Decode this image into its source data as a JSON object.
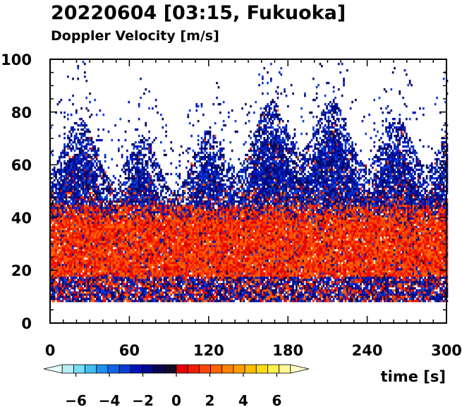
{
  "chart_data": {
    "type": "heatmap",
    "title": "20220604 [03:15, Fukuoka]",
    "subtitle": "Doppler Velocity [m/s]",
    "xlabel": "time [s]",
    "ylabel": "",
    "xlim": [
      0,
      300
    ],
    "ylim": [
      0,
      100
    ],
    "x_ticks": [
      "0",
      "60",
      "120",
      "180",
      "240",
      "300"
    ],
    "y_ticks": [
      "0",
      "20",
      "40",
      "60",
      "80",
      "100"
    ],
    "data_y_range": [
      8,
      100
    ],
    "colorbar": {
      "range": [
        -7.5,
        7.5
      ],
      "tick_labels": [
        "−6",
        "−4",
        "−2",
        "0",
        "2",
        "4",
        "6"
      ],
      "colors": [
        "#e6ffff",
        "#b4f0f8",
        "#7adcf4",
        "#40bff0",
        "#1e90f0",
        "#1464e6",
        "#0a3cd2",
        "#0014be",
        "#000a8c",
        "#0a0550",
        "#140a28",
        "#e60000",
        "#f01e00",
        "#fa4600",
        "#ff6400",
        "#ff8200",
        "#ffa000",
        "#ffbe00",
        "#ffdc14",
        "#fff050",
        "#fffa96",
        "#ffffc8"
      ]
    },
    "layers": [
      {
        "height_range": [
          8,
          18
        ],
        "dominant": "approaching (blue, about −2 to −1 m/s) mixed with receding (red)"
      },
      {
        "height_range": [
          18,
          45
        ],
        "dominant": "receding (red, about 0 to +1 m/s)"
      },
      {
        "height_range": [
          45,
          90
        ],
        "dominant": "approaching (blue, about −3 to −1 m/s)"
      }
    ]
  }
}
